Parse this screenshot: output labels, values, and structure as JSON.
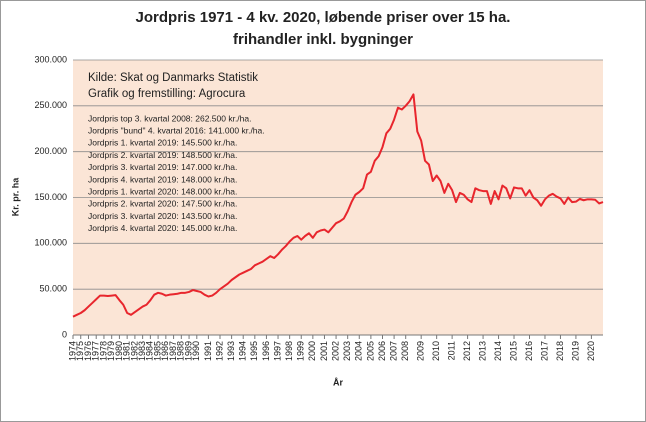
{
  "chart_data": {
    "type": "line",
    "title": "Jordpris 1971 - 4 kv. 2020, løbende priser over 15 ha.",
    "subtitle": "frihandler inkl. bygninger",
    "y_label": "Kr. pr. ha",
    "x_label": "År",
    "annotations": [
      "Kilde: Skat og Danmarks Statistik",
      "Grafik og fremstilling: Agrocura"
    ],
    "notes": [
      "Jordpris top 3. kvartal 2008: 262.500 kr./ha.",
      "Jordpris \"bund\" 4. kvartal 2016: 141.000 kr./ha.",
      "Jordpris 1. kvartal 2019: 145.500 kr./ha.",
      "Jordpris 2. kvartal 2019: 148.500 kr./ha.",
      "Jordpris 3. kvartal 2019: 147.000 kr./ha.",
      "Jordpris 4. kvartal 2019: 148.000 kr./ha.",
      "Jordpris 1. kvartal 2020: 148.000 kr./ha.",
      "Jordpris 2. kvartal 2020: 147.500 kr./ha.",
      "Jordpris 3. kvartal 2020: 143.500 kr./ha.",
      "Jordpris 4. kvartal 2020: 145.000 kr./ha."
    ],
    "categories": [
      "1974",
      null,
      "1975",
      null,
      "1976",
      null,
      "1977",
      null,
      "1978",
      null,
      "1979",
      null,
      "1980",
      null,
      "1981",
      null,
      "1982",
      null,
      "1983",
      null,
      "1984",
      null,
      "1985",
      null,
      "1986",
      null,
      "1987",
      null,
      "1988",
      null,
      "1989",
      null,
      "1990",
      null,
      null,
      "1991",
      null,
      null,
      "1992",
      null,
      null,
      "1993",
      null,
      null,
      "1994",
      null,
      null,
      "1995",
      null,
      null,
      "1996",
      null,
      null,
      "1997",
      null,
      null,
      "1998",
      null,
      null,
      "1999",
      null,
      null,
      "2000",
      null,
      null,
      "2001",
      null,
      null,
      "2002",
      null,
      null,
      "2003",
      null,
      null,
      "2004",
      null,
      null,
      "2005",
      null,
      null,
      "2006",
      null,
      null,
      "2007",
      null,
      null,
      "2008",
      null,
      null,
      null,
      "2009",
      null,
      null,
      null,
      "2010",
      null,
      null,
      null,
      "2011",
      null,
      null,
      null,
      "2012",
      null,
      null,
      null,
      "2013",
      null,
      null,
      null,
      "2014",
      null,
      null,
      null,
      "2015",
      null,
      null,
      null,
      "2016",
      null,
      null,
      null,
      "2017",
      null,
      null,
      null,
      "2018",
      null,
      null,
      null,
      "2019",
      null,
      null,
      null,
      "2020",
      null,
      null,
      null
    ],
    "series": [
      {
        "color": "#e8262d",
        "values": [
          20000,
          22000,
          24000,
          27000,
          31000,
          35000,
          39000,
          43000,
          43000,
          42500,
          43000,
          43500,
          38000,
          33000,
          24000,
          22000,
          25000,
          28000,
          31000,
          33000,
          38000,
          44000,
          46000,
          45000,
          43000,
          44000,
          44500,
          45000,
          46000,
          46000,
          47000,
          49000,
          48000,
          47000,
          44000,
          42000,
          43000,
          46000,
          50000,
          53000,
          56000,
          60000,
          63000,
          66000,
          68000,
          70000,
          72000,
          76000,
          78000,
          80000,
          83000,
          86000,
          84000,
          88000,
          93000,
          97000,
          102000,
          106000,
          108000,
          104000,
          108000,
          111000,
          106000,
          112000,
          114000,
          115000,
          112000,
          117000,
          122000,
          124000,
          127000,
          135000,
          145000,
          153000,
          156000,
          160000,
          175000,
          178000,
          190000,
          195000,
          205000,
          220000,
          225000,
          235000,
          248000,
          246000,
          250000,
          255000,
          262500,
          222000,
          212000,
          190000,
          186000,
          168000,
          174000,
          168000,
          155000,
          165000,
          158000,
          145000,
          155000,
          153000,
          148000,
          145000,
          160000,
          158000,
          157000,
          157000,
          143000,
          157000,
          148000,
          163000,
          160000,
          149000,
          161000,
          160000,
          160000,
          152000,
          158000,
          150000,
          147000,
          141000,
          148000,
          152000,
          154000,
          151000,
          149000,
          143000,
          150000,
          145000,
          145500,
          148500,
          147000,
          148000,
          148000,
          147500,
          143500,
          145000
        ]
      }
    ],
    "ylim": [
      0,
      300000
    ],
    "yticks": [
      {
        "value": 0,
        "label": "0"
      },
      {
        "value": 50000,
        "label": "50.000"
      },
      {
        "value": 100000,
        "label": "100.000"
      },
      {
        "value": 150000,
        "label": "150.000"
      },
      {
        "value": 200000,
        "label": "200.000"
      },
      {
        "value": 250000,
        "label": "250.000"
      },
      {
        "value": 300000,
        "label": "300.000"
      }
    ],
    "grid": true,
    "background": "#fbe5d6"
  }
}
